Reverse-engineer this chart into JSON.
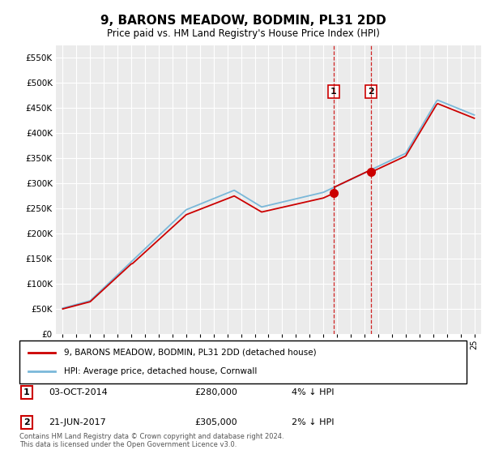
{
  "title": "9, BARONS MEADOW, BODMIN, PL31 2DD",
  "subtitle": "Price paid vs. HM Land Registry's House Price Index (HPI)",
  "footer": "Contains HM Land Registry data © Crown copyright and database right 2024.\nThis data is licensed under the Open Government Licence v3.0.",
  "legend_entries": [
    "9, BARONS MEADOW, BODMIN, PL31 2DD (detached house)",
    "HPI: Average price, detached house, Cornwall"
  ],
  "transactions": [
    {
      "label": "1",
      "date": "03-OCT-2014",
      "price": "£280,000",
      "hpi": "4% ↓ HPI",
      "x": 2014.75,
      "price_val": 280000
    },
    {
      "label": "2",
      "date": "21-JUN-2017",
      "price": "£305,000",
      "hpi": "2% ↓ HPI",
      "x": 2017.47,
      "price_val": 305000
    }
  ],
  "hpi_color": "#7ab8d9",
  "paid_color": "#cc0000",
  "marker_color": "#cc0000",
  "shade_color": "#c6dbef",
  "vline_color": "#cc0000",
  "ylim": [
    0,
    575000
  ],
  "yticks": [
    0,
    50000,
    100000,
    150000,
    200000,
    250000,
    300000,
    350000,
    400000,
    450000,
    500000,
    550000
  ],
  "xlim": [
    1994.5,
    2025.5
  ],
  "background_color": "#ffffff",
  "plot_bg_color": "#ebebeb"
}
